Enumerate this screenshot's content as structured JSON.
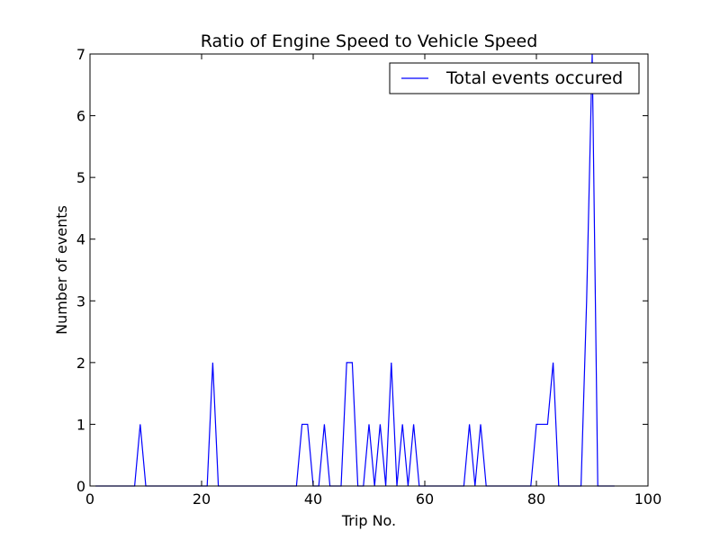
{
  "chart_data": {
    "type": "line",
    "title": "Ratio of Engine Speed to Vehicle Speed",
    "xlabel": "Trip No.",
    "ylabel": "Number of events",
    "xlim": [
      0,
      100
    ],
    "ylim": [
      0,
      7
    ],
    "xticks": [
      0,
      20,
      40,
      60,
      80,
      100
    ],
    "yticks": [
      0,
      1,
      2,
      3,
      4,
      5,
      6,
      7
    ],
    "grid": false,
    "legend_position": "top-right",
    "series": [
      {
        "name": "Total events occured",
        "color": "#0000ff",
        "x": [
          1,
          2,
          3,
          4,
          5,
          6,
          7,
          8,
          9,
          10,
          11,
          12,
          13,
          14,
          15,
          16,
          17,
          18,
          19,
          20,
          21,
          22,
          23,
          24,
          25,
          26,
          27,
          28,
          29,
          30,
          31,
          32,
          33,
          34,
          35,
          36,
          37,
          38,
          39,
          40,
          41,
          42,
          43,
          44,
          45,
          46,
          47,
          48,
          49,
          50,
          51,
          52,
          53,
          54,
          55,
          56,
          57,
          58,
          59,
          60,
          61,
          62,
          63,
          64,
          65,
          66,
          67,
          68,
          69,
          70,
          71,
          72,
          73,
          74,
          75,
          76,
          77,
          78,
          79,
          80,
          81,
          82,
          83,
          84,
          85,
          86,
          87,
          88,
          89,
          90,
          91,
          92,
          93,
          94
        ],
        "y": [
          0,
          0,
          0,
          0,
          0,
          0,
          0,
          0,
          1,
          0,
          0,
          0,
          0,
          0,
          0,
          0,
          0,
          0,
          0,
          0,
          0,
          2,
          0,
          0,
          0,
          0,
          0,
          0,
          0,
          0,
          0,
          0,
          0,
          0,
          0,
          0,
          0,
          1,
          1,
          0,
          0,
          1,
          0,
          0,
          0,
          2,
          2,
          0,
          0,
          1,
          0,
          1,
          0,
          2,
          0,
          1,
          0,
          1,
          0,
          0,
          0,
          0,
          0,
          0,
          0,
          0,
          0,
          1,
          0,
          1,
          0,
          0,
          0,
          0,
          0,
          0,
          0,
          0,
          0,
          1,
          1,
          1,
          2,
          0,
          0,
          0,
          0,
          0,
          3,
          7,
          0,
          0,
          0,
          0
        ]
      }
    ]
  }
}
